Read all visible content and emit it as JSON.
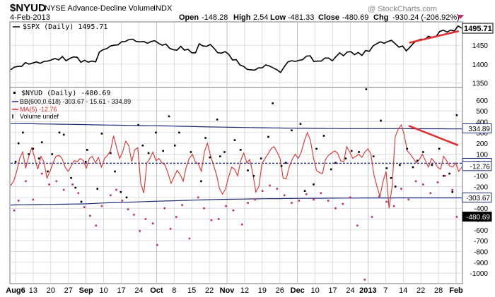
{
  "header": {
    "symbol": "$NYUD",
    "name": "NYSE Advance-Decline Volume",
    "exchange": "INDX",
    "date": "4-Feb-2013",
    "watermark": "@ StockCharts.com",
    "quote": {
      "open_label": "Open",
      "open": "-148.28",
      "high_label": "High",
      "high": "2.54",
      "low_label": "Low",
      "low": "-481.33",
      "close_label": "Close",
      "close": "-480.69",
      "chg_label": "Chg",
      "chg": "-930.24 (-206.92%)"
    }
  },
  "chart_data": [
    {
      "type": "line",
      "legend": "$SPX (Daily) 1495.71",
      "last_value_label": "1495.71",
      "ylim": [
        1340,
        1510
      ],
      "yticks": [
        1350,
        1400,
        1450
      ],
      "series": [
        {
          "name": "$SPX",
          "color": "#000000",
          "values": [
            1385,
            1392,
            1394,
            1394,
            1404,
            1400,
            1403,
            1406,
            1402,
            1407,
            1408,
            1411,
            1415,
            1411,
            1420,
            1409,
            1415,
            1419,
            1418,
            1405,
            1410,
            1405,
            1408,
            1406,
            1432,
            1438,
            1441,
            1448,
            1450,
            1451,
            1459,
            1460,
            1465,
            1466,
            1460,
            1459,
            1460,
            1455,
            1460,
            1462,
            1455,
            1450,
            1453,
            1442,
            1438,
            1437,
            1447,
            1437,
            1439,
            1430,
            1430,
            1454,
            1448,
            1447,
            1452,
            1442,
            1430,
            1429,
            1433,
            1426,
            1411,
            1412,
            1398,
            1394,
            1386,
            1385,
            1384,
            1390,
            1390,
            1398,
            1395,
            1390,
            1385,
            1378,
            1393,
            1406,
            1409,
            1407,
            1410,
            1412,
            1421,
            1422,
            1407,
            1408,
            1408,
            1416,
            1416,
            1409,
            1420,
            1430,
            1422,
            1432,
            1433,
            1425,
            1431,
            1423,
            1436,
            1434,
            1448,
            1454,
            1459,
            1455,
            1460,
            1463,
            1454,
            1445,
            1448,
            1435,
            1445,
            1456,
            1463,
            1466,
            1465,
            1474,
            1470,
            1472,
            1486,
            1490,
            1485,
            1490,
            1488,
            1501,
            1495
          ]
        }
      ]
    },
    {
      "type": "line",
      "legend_title": "$NYUD (Daily) -480.69",
      "bb_legend": "BB(600,0.618) -303.67 - 15.61 - 334.89",
      "ma_legend": "MA(5) -12.76",
      "volume_legend": "Volume undef",
      "ylim": [
        -1090,
        710
      ],
      "yticks": [
        -1000,
        -900,
        -800,
        -700,
        -600,
        -500,
        -400,
        -300,
        -200,
        -100,
        0,
        100,
        200,
        300,
        400,
        500,
        600
      ],
      "x_labels": [
        "Aug6",
        "13",
        "20",
        "27",
        "Sep",
        "10",
        "17",
        "24",
        "Oct",
        "8",
        "15",
        "22",
        "Nov",
        "12",
        "19",
        "26",
        "Dec",
        "10",
        "17",
        "24",
        "2013",
        "7",
        "14",
        "22",
        "28",
        "Feb"
      ],
      "price_tags": [
        {
          "value": 334.89,
          "label": "334.89",
          "style": "outline"
        },
        {
          "value": 15.61,
          "label": "15.61",
          "style": "outline"
        },
        {
          "value": -12.76,
          "label": "-12.76",
          "style": "outline"
        },
        {
          "value": -303.67,
          "label": "-303.67",
          "style": "outline"
        },
        {
          "value": -480.69,
          "label": "-480.69",
          "style": "dark"
        }
      ],
      "bb_upper_values": [
        382,
        382,
        381,
        381,
        380,
        379,
        378,
        377,
        376,
        375,
        374,
        373,
        371,
        370,
        369,
        368,
        367,
        366,
        365,
        364,
        363,
        362,
        361,
        360,
        358,
        357,
        355,
        354,
        352,
        351,
        350,
        349,
        348,
        347,
        346,
        345,
        344,
        343,
        342,
        341,
        340,
        339,
        339,
        338,
        338,
        337,
        337,
        336,
        336,
        336,
        336,
        336,
        336,
        336,
        336,
        336,
        336,
        335,
        335,
        335,
        335,
        335,
        334,
        334,
        334
      ],
      "bb_middle_values": [
        16,
        16,
        16,
        16,
        16,
        16,
        16,
        16,
        16,
        16,
        16,
        16,
        16,
        16,
        16,
        16,
        16,
        16,
        16,
        16,
        16,
        16,
        16,
        16,
        16,
        16,
        16,
        16,
        16,
        16,
        16,
        16,
        16,
        16,
        16,
        16,
        16,
        16,
        16,
        16,
        16,
        16,
        16,
        16,
        16,
        16,
        16,
        16,
        16,
        16,
        16,
        16,
        16,
        16,
        16,
        16,
        16,
        16,
        16,
        16,
        16,
        16,
        16,
        16,
        16
      ],
      "bb_lower_values": [
        -370,
        -369,
        -368,
        -367,
        -366,
        -365,
        -364,
        -363,
        -362,
        -361,
        -360,
        -358,
        -355,
        -352,
        -349,
        -347,
        -345,
        -343,
        -341,
        -339,
        -337,
        -335,
        -333,
        -331,
        -329,
        -327,
        -325,
        -323,
        -321,
        -319,
        -318,
        -317,
        -316,
        -315,
        -314,
        -313,
        -312,
        -311,
        -311,
        -310,
        -310,
        -309,
        -309,
        -308,
        -308,
        -307,
        -307,
        -306,
        -306,
        -306,
        -305,
        -305,
        -305,
        -305,
        -305,
        -304,
        -304,
        -304,
        -304,
        -304,
        -304,
        -304,
        -304,
        -304,
        -304
      ],
      "ma_values": [
        -190,
        -150,
        -60,
        60,
        120,
        -30,
        80,
        160,
        60,
        -40,
        80,
        30,
        -120,
        -60,
        20,
        80,
        90,
        60,
        -20,
        -60,
        -10,
        40,
        30,
        60,
        40,
        -30,
        60,
        80,
        20,
        70,
        -20,
        60,
        90,
        130,
        270,
        160,
        60,
        120,
        220,
        180,
        30,
        140,
        160,
        -170,
        -260,
        20,
        60,
        120,
        40,
        60,
        20,
        0,
        -80,
        -170,
        -110,
        -50,
        -90,
        -150,
        -20,
        60,
        100,
        30,
        10,
        -60,
        120,
        200,
        90,
        0,
        -90,
        -220,
        -270,
        -220,
        -110,
        -20,
        -40,
        -100,
        40,
        110,
        20,
        50,
        -80,
        -250,
        -200,
        10,
        60,
        100,
        150,
        170,
        120,
        60,
        -120,
        -130,
        -20,
        50,
        100,
        60,
        120,
        220,
        300,
        230,
        70,
        -50,
        -70,
        -80,
        50,
        90,
        110,
        130,
        110,
        40,
        30,
        170,
        120,
        60,
        80,
        100,
        70,
        120,
        150,
        100,
        -90,
        -200,
        -290,
        -150,
        -60,
        -400,
        -200,
        260,
        330,
        370,
        280,
        130,
        100,
        60,
        20,
        50,
        100,
        40,
        -20,
        60,
        30,
        -20,
        -40,
        80,
        40,
        -10,
        -20,
        20,
        -60,
        -20
      ]
    }
  ],
  "annotations": [
    {
      "name": "spx-rising-trendline",
      "color": "#e23030",
      "from": [
        108,
        1457
      ],
      "to": [
        121,
        1487
      ]
    },
    {
      "name": "nyud-falling-trendline",
      "color": "#e23030",
      "from": [
        108,
        360
      ],
      "to": [
        121,
        185
      ]
    }
  ],
  "colors": {
    "background": "#ffffff",
    "grid": "#c8c8c8",
    "bollinger": "#1b2a7a",
    "moving_average": "#e23030",
    "spx_line": "#000000",
    "up_dot": "#000000",
    "down_dot": "#c0306a",
    "price_tag_dark": "#000000"
  },
  "scatter_points": {
    "up": [
      [
        1,
        30
      ],
      [
        3,
        200
      ],
      [
        6,
        300
      ],
      [
        10,
        100
      ],
      [
        13,
        150
      ],
      [
        17,
        60
      ],
      [
        19,
        210
      ],
      [
        23,
        -60
      ],
      [
        26,
        100
      ],
      [
        31,
        300
      ],
      [
        34,
        280
      ],
      [
        39,
        -120
      ],
      [
        42,
        -210
      ],
      [
        46,
        -340
      ],
      [
        49,
        30
      ],
      [
        50,
        140
      ],
      [
        57,
        -220
      ],
      [
        60,
        290
      ],
      [
        66,
        110
      ],
      [
        69,
        -60
      ],
      [
        73,
        -250
      ],
      [
        77,
        -300
      ],
      [
        85,
        370
      ],
      [
        88,
        180
      ],
      [
        92,
        110
      ],
      [
        97,
        300
      ],
      [
        102,
        130
      ],
      [
        106,
        450
      ],
      [
        110,
        180
      ],
      [
        113,
        300
      ],
      [
        121,
        120
      ],
      [
        128,
        -150
      ],
      [
        131,
        250
      ],
      [
        134,
        70
      ],
      [
        139,
        420
      ],
      [
        141,
        80
      ],
      [
        144,
        120
      ],
      [
        151,
        230
      ],
      [
        155,
        140
      ],
      [
        160,
        -50
      ],
      [
        164,
        -100
      ],
      [
        169,
        60
      ],
      [
        174,
        260
      ],
      [
        177,
        570
      ],
      [
        183,
        -10
      ],
      [
        186,
        20
      ],
      [
        190,
        320
      ],
      [
        196,
        380
      ],
      [
        199,
        -240
      ],
      [
        205,
        -180
      ],
      [
        207,
        150
      ],
      [
        212,
        270
      ],
      [
        217,
        -40
      ],
      [
        220,
        20
      ],
      [
        227,
        60
      ],
      [
        231,
        130
      ],
      [
        236,
        120
      ],
      [
        241,
        700
      ],
      [
        246,
        80
      ],
      [
        251,
        410
      ],
      [
        255,
        -30
      ],
      [
        258,
        -120
      ],
      [
        261,
        -200
      ],
      [
        264,
        0
      ],
      [
        269,
        150
      ],
      [
        273,
        -20
      ],
      [
        276,
        40
      ],
      [
        280,
        120
      ],
      [
        286,
        0
      ],
      [
        291,
        150
      ],
      [
        294,
        -100
      ],
      [
        298,
        -80
      ],
      [
        300,
        -250
      ],
      [
        303,
        460
      ]
    ],
    "down": [
      [
        0,
        -420
      ],
      [
        3,
        -330
      ],
      [
        8,
        -150
      ],
      [
        13,
        -320
      ],
      [
        19,
        -80
      ],
      [
        24,
        -180
      ],
      [
        29,
        -150
      ],
      [
        34,
        -230
      ],
      [
        40,
        -180
      ],
      [
        44,
        -260
      ],
      [
        48,
        -390
      ],
      [
        52,
        -470
      ],
      [
        56,
        -560
      ],
      [
        60,
        -380
      ],
      [
        66,
        -280
      ],
      [
        70,
        -230
      ],
      [
        74,
        -330
      ],
      [
        78,
        -410
      ],
      [
        82,
        -460
      ],
      [
        86,
        -610
      ],
      [
        90,
        -500
      ],
      [
        95,
        -540
      ],
      [
        98,
        -740
      ],
      [
        103,
        -400
      ],
      [
        107,
        -590
      ],
      [
        111,
        -480
      ],
      [
        115,
        -370
      ],
      [
        120,
        -680
      ],
      [
        126,
        -300
      ],
      [
        130,
        -400
      ],
      [
        135,
        -510
      ],
      [
        140,
        -500
      ],
      [
        145,
        -380
      ],
      [
        150,
        -420
      ],
      [
        156,
        -550
      ],
      [
        160,
        -350
      ],
      [
        165,
        -320
      ],
      [
        170,
        -240
      ],
      [
        175,
        -190
      ],
      [
        180,
        -220
      ],
      [
        185,
        -280
      ],
      [
        190,
        -350
      ],
      [
        195,
        -330
      ],
      [
        200,
        -270
      ],
      [
        205,
        -320
      ],
      [
        210,
        -260
      ],
      [
        215,
        -330
      ],
      [
        220,
        -400
      ],
      [
        225,
        -360
      ],
      [
        230,
        -300
      ],
      [
        235,
        -560
      ],
      [
        240,
        -1060
      ],
      [
        245,
        -480
      ],
      [
        250,
        -290
      ],
      [
        255,
        -340
      ],
      [
        260,
        -380
      ],
      [
        265,
        -220
      ],
      [
        270,
        -320
      ],
      [
        275,
        -150
      ],
      [
        280,
        -180
      ],
      [
        285,
        -260
      ],
      [
        290,
        -160
      ],
      [
        295,
        -100
      ],
      [
        300,
        -230
      ],
      [
        303,
        -480
      ]
    ]
  }
}
